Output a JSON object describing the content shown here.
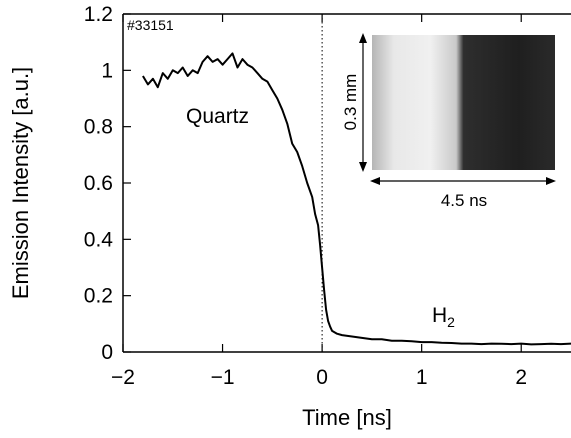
{
  "chart_data": {
    "type": "line",
    "title": "",
    "xlabel": "Time [ns]",
    "ylabel": "Emission Intensity [a.u.]",
    "xlim": [
      -2,
      2.5
    ],
    "ylim": [
      0,
      1.2
    ],
    "xticks": [
      -2,
      -1,
      0,
      1,
      2
    ],
    "xtick_labels": [
      "−2",
      "−1",
      "0",
      "1",
      "2"
    ],
    "yticks": [
      0,
      0.2,
      0.4,
      0.6,
      0.8,
      1,
      1.2
    ],
    "ytick_labels": [
      "0",
      "0.2",
      "0.4",
      "0.6",
      "0.8",
      "1",
      "1.2"
    ],
    "grid": false,
    "reference_line_x": 0,
    "series": [
      {
        "color": "#000000",
        "x": [
          -1.8,
          -1.75,
          -1.7,
          -1.65,
          -1.6,
          -1.55,
          -1.5,
          -1.45,
          -1.4,
          -1.35,
          -1.3,
          -1.25,
          -1.2,
          -1.15,
          -1.1,
          -1.05,
          -1.0,
          -0.95,
          -0.9,
          -0.85,
          -0.8,
          -0.75,
          -0.7,
          -0.65,
          -0.6,
          -0.55,
          -0.5,
          -0.45,
          -0.4,
          -0.35,
          -0.3,
          -0.25,
          -0.2,
          -0.15,
          -0.1,
          -0.07,
          -0.04,
          -0.02,
          0.0,
          0.02,
          0.04,
          0.06,
          0.08,
          0.1,
          0.15,
          0.2,
          0.3,
          0.4,
          0.5,
          0.6,
          0.7,
          0.8,
          0.9,
          1.0,
          1.1,
          1.2,
          1.3,
          1.4,
          1.5,
          1.6,
          1.7,
          1.8,
          1.9,
          2.0,
          2.1,
          2.2,
          2.3,
          2.4,
          2.5
        ],
        "y": [
          0.98,
          0.95,
          0.97,
          0.94,
          0.99,
          0.97,
          1.0,
          0.99,
          1.01,
          0.98,
          1.0,
          0.99,
          1.03,
          1.05,
          1.03,
          1.04,
          1.02,
          1.04,
          1.06,
          1.01,
          1.04,
          1.02,
          1.01,
          0.99,
          0.97,
          0.96,
          0.93,
          0.9,
          0.86,
          0.81,
          0.74,
          0.71,
          0.66,
          0.6,
          0.55,
          0.49,
          0.45,
          0.38,
          0.3,
          0.22,
          0.15,
          0.11,
          0.09,
          0.075,
          0.065,
          0.06,
          0.055,
          0.05,
          0.045,
          0.045,
          0.04,
          0.04,
          0.038,
          0.035,
          0.035,
          0.033,
          0.032,
          0.03,
          0.03,
          0.028,
          0.03,
          0.029,
          0.028,
          0.03,
          0.027,
          0.028,
          0.029,
          0.028,
          0.03
        ]
      }
    ]
  },
  "annotations": {
    "shot_id": "#33151",
    "quartz_label": "Quartz",
    "h2_label_main": "H",
    "h2_label_sub": "2",
    "inset_vertical_label": "0.3 mm",
    "inset_horizontal_label": "4.5 ns"
  }
}
